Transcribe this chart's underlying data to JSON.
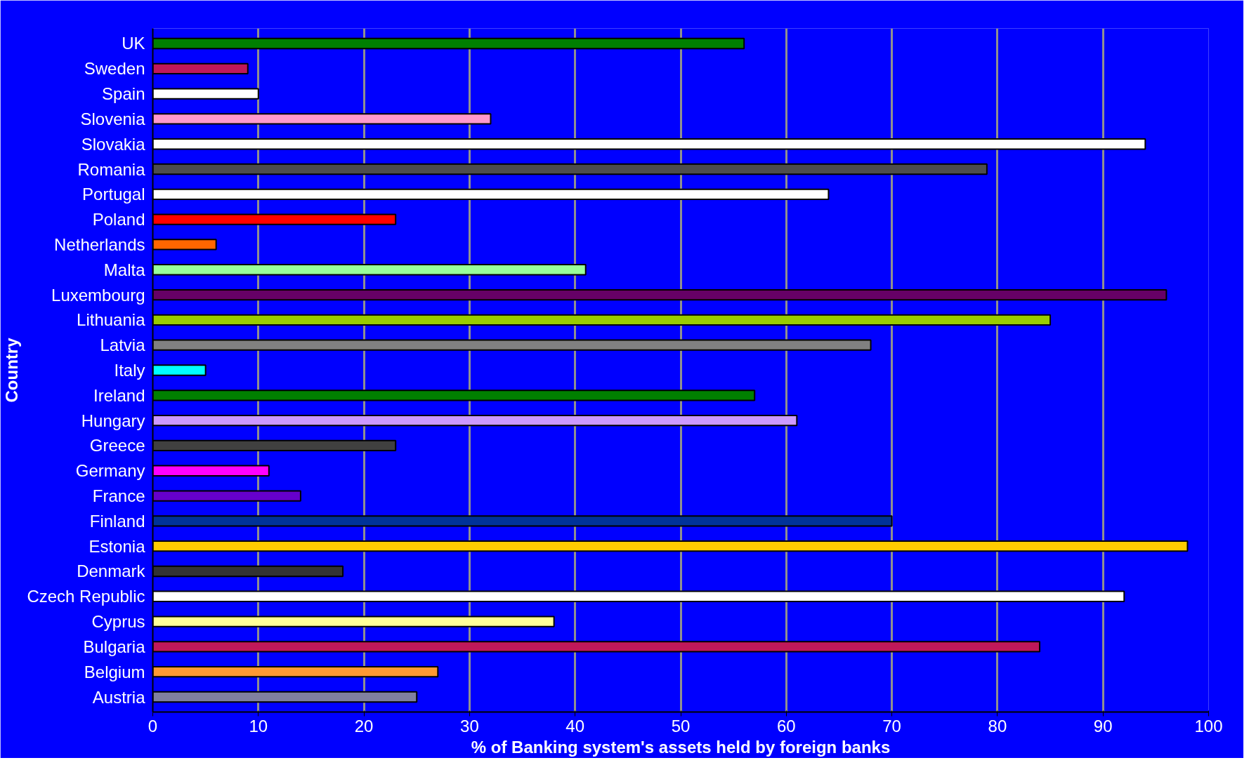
{
  "chart_data": {
    "type": "bar",
    "orientation": "horizontal",
    "xlabel": "% of Banking system's assets held by foreign banks",
    "ylabel": "Country",
    "categories": [
      "UK",
      "Sweden",
      "Spain",
      "Slovenia",
      "Slovakia",
      "Romania",
      "Portugal",
      "Poland",
      "Netherlands",
      "Malta",
      "Luxembourg",
      "Lithuania",
      "Latvia",
      "Italy",
      "Ireland",
      "Hungary",
      "Greece",
      "Germany",
      "France",
      "Finland",
      "Estonia",
      "Denmark",
      "Czech Republic",
      "Cyprus",
      "Bulgaria",
      "Belgium",
      "Austria"
    ],
    "values": [
      56,
      9,
      10,
      32,
      94,
      79,
      64,
      23,
      6,
      41,
      96,
      85,
      68,
      5,
      57,
      61,
      23,
      11,
      14,
      70,
      98,
      18,
      92,
      38,
      84,
      27,
      25
    ],
    "colors": [
      "#008000",
      "#c0185a",
      "#ffffff",
      "#ff99cc",
      "#ffffff",
      "#4d4d4d",
      "#ffffff",
      "#ff0000",
      "#ff6600",
      "#99ff99",
      "#660066",
      "#99cc00",
      "#808080",
      "#00ffff",
      "#008000",
      "#cc99ff",
      "#404040",
      "#ff00ff",
      "#6600cc",
      "#003399",
      "#ffcc00",
      "#333333",
      "#ffffff",
      "#ffff99",
      "#c0185a",
      "#ff9933",
      "#8080a0"
    ],
    "xlim": [
      0,
      100
    ],
    "xticks": [
      0,
      10,
      20,
      30,
      40,
      50,
      60,
      70,
      80,
      90,
      100
    ],
    "grid": "x"
  }
}
